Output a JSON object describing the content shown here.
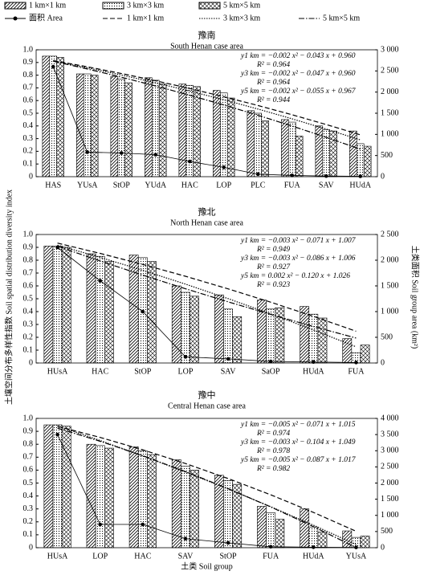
{
  "chart_data": [
    {
      "type": "bar",
      "title": "豫南",
      "subtitle": "South Henan case area",
      "categories": [
        "HAS",
        "YUsA",
        "StOP",
        "YUdA",
        "HAC",
        "LOP",
        "PLC",
        "FUA",
        "SAV",
        "HUdA"
      ],
      "series": [
        {
          "name": "1 km×1 km",
          "type": "bar",
          "pattern": "hatch",
          "color": "#000000",
          "values": [
            0.95,
            0.81,
            0.79,
            0.78,
            0.73,
            0.68,
            0.52,
            0.45,
            0.4,
            0.36
          ]
        },
        {
          "name": "3 km×3 km",
          "type": "bar",
          "pattern": "dots",
          "color": "#000000",
          "values": [
            0.95,
            0.81,
            0.77,
            0.76,
            0.72,
            0.66,
            0.5,
            0.43,
            0.37,
            0.26
          ]
        },
        {
          "name": "5 km×5 km",
          "type": "bar",
          "pattern": "cross",
          "color": "#000000",
          "values": [
            0.94,
            0.8,
            0.74,
            0.73,
            0.71,
            0.62,
            0.44,
            0.32,
            0.36,
            0.24
          ]
        },
        {
          "name": "面积 Area",
          "type": "line",
          "dash": "solid",
          "marker": "dot",
          "axis": "y2",
          "color": "#000000",
          "values": [
            2600,
            580,
            560,
            520,
            360,
            220,
            60,
            30,
            15,
            10
          ]
        },
        {
          "name": "1 km×1 km",
          "type": "line",
          "dash": "dashed",
          "color": "#000000",
          "values": [
            0.915,
            0.866,
            0.813,
            0.756,
            0.695,
            0.63,
            0.561,
            0.488,
            0.411,
            0.33
          ]
        },
        {
          "name": "3 km×3 km",
          "type": "line",
          "dash": "dotted",
          "color": "#000000",
          "values": [
            0.911,
            0.858,
            0.801,
            0.74,
            0.675,
            0.606,
            0.533,
            0.456,
            0.375,
            0.29
          ]
        },
        {
          "name": "5 km×5 km",
          "type": "line",
          "dash": "dashdot",
          "color": "#000000",
          "values": [
            0.91,
            0.849,
            0.784,
            0.715,
            0.642,
            0.565,
            0.484,
            0.399,
            0.31,
            0.217
          ]
        }
      ],
      "annotations": [
        "y1 km = −0.002 x² − 0.043 x + 0.960",
        "R² = 0.964",
        "y3 km = −0.002 x² − 0.047 x + 0.960",
        "R² = 0.964",
        "y5 km = −0.002 x² − 0.055 x + 0.967",
        "R² = 0.944"
      ],
      "ylim": [
        0,
        1
      ],
      "yticks": [
        0,
        0.1,
        0.2,
        0.3,
        0.4,
        0.5,
        0.6,
        0.7,
        0.8,
        0.9,
        {
          "value": 1,
          "label": "1.0"
        }
      ],
      "y2lim": [
        0,
        3000
      ],
      "y2ticks": [
        0,
        500,
        {
          "value": 1000,
          "label": "1 000"
        },
        {
          "value": 1500,
          "label": "1 500"
        },
        {
          "value": 2000,
          "label": "2 000"
        },
        {
          "value": 2500,
          "label": "2 500"
        },
        {
          "value": 3000,
          "label": "3 000"
        }
      ]
    },
    {
      "type": "bar",
      "title": "豫北",
      "subtitle": "North Henan case area",
      "ylabel": "土壤空间分布多样性指数 Soil spatial distribution diversity index",
      "y2label": "土类面积 Soil group area (km²)",
      "categories": [
        "HUsA",
        "HAC",
        "StOP",
        "LOP",
        "SAV",
        "SaOP",
        "HUdA",
        "FUA"
      ],
      "series": [
        {
          "name": "1 km×1 km",
          "type": "bar",
          "pattern": "hatch",
          "color": "#000000",
          "values": [
            0.91,
            0.85,
            0.84,
            0.6,
            0.53,
            0.49,
            0.44,
            0.19
          ]
        },
        {
          "name": "3 km×3 km",
          "type": "bar",
          "pattern": "dots",
          "color": "#000000",
          "values": [
            0.91,
            0.83,
            0.82,
            0.55,
            0.42,
            0.42,
            0.38,
            0.08
          ]
        },
        {
          "name": "5 km×5 km",
          "type": "bar",
          "pattern": "cross",
          "color": "#000000",
          "values": [
            0.9,
            0.79,
            0.79,
            0.52,
            0.36,
            0.43,
            0.35,
            0.14
          ]
        },
        {
          "name": "面积 Area",
          "type": "line",
          "dash": "solid",
          "marker": "dot",
          "axis": "y2",
          "color": "#000000",
          "values": [
            2250,
            1600,
            1000,
            120,
            80,
            30,
            20,
            10
          ]
        },
        {
          "name": "1 km×1 km",
          "type": "line",
          "dash": "dashed",
          "color": "#000000",
          "values": [
            0.933,
            0.853,
            0.767,
            0.675,
            0.577,
            0.473,
            0.363,
            0.247
          ]
        },
        {
          "name": "3 km×3 km",
          "type": "line",
          "dash": "dotted",
          "color": "#000000",
          "values": [
            0.917,
            0.822,
            0.721,
            0.614,
            0.501,
            0.382,
            0.257,
            0.126
          ]
        },
        {
          "name": "5 km×5 km",
          "type": "line",
          "dash": "dashdot",
          "color": "#000000",
          "values": [
            0.908,
            0.794,
            0.684,
            0.578,
            0.476,
            0.378,
            0.284,
            0.194
          ]
        }
      ],
      "annotations": [
        "y1 km = −0.003 x² − 0.071 x + 1.007",
        "R² = 0.949",
        "y3 km = −0.003 x² − 0.086 x + 1.006",
        "R² = 0.927",
        "y5 km = 0.002 x² − 0.120 x + 1.026",
        "R² = 0.923"
      ],
      "ylim": [
        0,
        1
      ],
      "yticks": [
        0,
        0.1,
        0.2,
        0.3,
        0.4,
        0.5,
        0.6,
        0.7,
        0.8,
        0.9,
        {
          "value": 1,
          "label": "1.0"
        }
      ],
      "y2lim": [
        0,
        2500
      ],
      "y2ticks": [
        0,
        500,
        {
          "value": 1000,
          "label": "1 000"
        },
        {
          "value": 1500,
          "label": "1 500"
        },
        {
          "value": 2000,
          "label": "2 000"
        },
        {
          "value": 2500,
          "label": "2 500"
        }
      ]
    },
    {
      "type": "bar",
      "title": "豫中",
      "subtitle": "Central Henan case area",
      "xlabel": "土类 Soil group",
      "categories": [
        "HUsA",
        "LOP",
        "HAC",
        "SAV",
        "StOP",
        "FUA",
        "HUdA",
        "YUsA"
      ],
      "series": [
        {
          "name": "1 km×1 km",
          "type": "bar",
          "pattern": "hatch",
          "color": "#000000",
          "values": [
            0.95,
            0.8,
            0.78,
            0.68,
            0.56,
            0.32,
            0.3,
            0.13
          ]
        },
        {
          "name": "3 km×3 km",
          "type": "bar",
          "pattern": "dots",
          "color": "#000000",
          "values": [
            0.95,
            0.79,
            0.75,
            0.63,
            0.52,
            0.27,
            0.16,
            0.08
          ]
        },
        {
          "name": "5 km×5 km",
          "type": "bar",
          "pattern": "cross",
          "color": "#000000",
          "values": [
            0.94,
            0.77,
            0.72,
            0.6,
            0.49,
            0.22,
            0.12,
            0.09
          ]
        },
        {
          "name": "面积 Area",
          "type": "line",
          "dash": "solid",
          "marker": "dot",
          "axis": "y2",
          "color": "#000000",
          "values": [
            3500,
            720,
            720,
            280,
            150,
            30,
            15,
            10
          ]
        },
        {
          "name": "1 km×1 km",
          "type": "line",
          "dash": "dashed",
          "color": "#000000",
          "values": [
            0.939,
            0.853,
            0.757,
            0.651,
            0.535,
            0.409,
            0.273,
            0.127
          ]
        },
        {
          "name": "3 km×3 km",
          "type": "line",
          "dash": "dotted",
          "color": "#000000",
          "values": [
            0.942,
            0.829,
            0.71,
            0.585,
            0.454,
            0.317,
            0.174,
            0.025
          ]
        },
        {
          "name": "5 km×5 km",
          "type": "line",
          "dash": "dashdot",
          "color": "#000000",
          "values": [
            0.925,
            0.823,
            0.711,
            0.589,
            0.457,
            0.315,
            0.163,
            0.001
          ]
        }
      ],
      "annotations": [
        "y1 km = −0.005 x² − 0.071 x + 1.015",
        "R² = 0.974",
        "y3 km = −0.003 x² − 0.104 x + 1.049",
        "R² = 0.978",
        "y5 km = −0.005 x² − 0.087 x + 1.017",
        "R² = 0.982"
      ],
      "ylim": [
        0,
        1
      ],
      "yticks": [
        0,
        0.1,
        0.2,
        0.3,
        0.4,
        0.5,
        0.6,
        0.7,
        0.8,
        0.9,
        {
          "value": 1,
          "label": "1.0"
        }
      ],
      "y2lim": [
        0,
        4000
      ],
      "y2ticks": [
        0,
        500,
        {
          "value": 1000,
          "label": "1 000"
        },
        {
          "value": 1500,
          "label": "1 500"
        },
        {
          "value": 2000,
          "label": "2 000"
        },
        {
          "value": 2500,
          "label": "2 500"
        },
        {
          "value": 3000,
          "label": "3 000"
        },
        {
          "value": 3500,
          "label": "3 500"
        },
        {
          "value": 4000,
          "label": "4 000"
        }
      ]
    }
  ]
}
